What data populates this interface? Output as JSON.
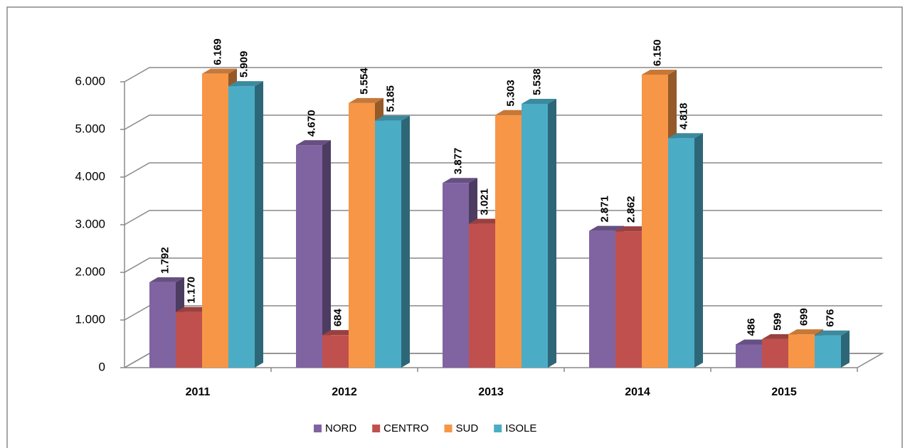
{
  "chart_data": {
    "type": "bar3d",
    "categories": [
      "2011",
      "2012",
      "2013",
      "2014",
      "2015"
    ],
    "ylim": [
      0,
      6000
    ],
    "yticks": [
      0,
      {
        "value": 1000,
        "label": "1.000"
      },
      {
        "value": 2000,
        "label": "2.000"
      },
      {
        "value": 3000,
        "label": "3.000"
      },
      {
        "value": 4000,
        "label": "4.000"
      },
      {
        "value": 5000,
        "label": "5.000"
      },
      {
        "value": 6000,
        "label": "6.000"
      }
    ],
    "grid": true,
    "legend": "bottom",
    "series": [
      {
        "name": "NORD",
        "color": "#8064a2",
        "values": [
          1792,
          4670,
          3877,
          2871,
          486
        ],
        "value_labels": [
          "1.792",
          "4.670",
          "3.877",
          "2.871",
          "486"
        ]
      },
      {
        "name": "CENTRO",
        "color": "#c0504d",
        "values": [
          1170,
          684,
          3021,
          2862,
          599
        ],
        "value_labels": [
          "1.170",
          "684",
          "3.021",
          "2.862",
          "599"
        ]
      },
      {
        "name": "SUD",
        "color": "#f79646",
        "values": [
          6169,
          5554,
          5303,
          6150,
          699
        ],
        "value_labels": [
          "6.169",
          "5.554",
          "5.303",
          "6.150",
          "699"
        ]
      },
      {
        "name": "ISOLE",
        "color": "#4bacc6",
        "values": [
          5909,
          5185,
          5538,
          4818,
          676
        ],
        "value_labels": [
          "5.909",
          "5.185",
          "5.538",
          "4.818",
          "676"
        ]
      }
    ]
  }
}
